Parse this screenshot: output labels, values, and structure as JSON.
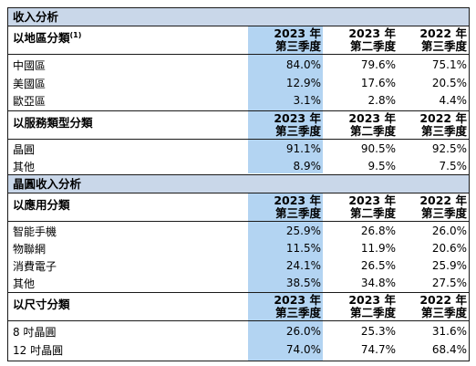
{
  "revenue_title": "收入分析",
  "wafer_title": "晶圓收入分析",
  "headers": {
    "col1": [
      "2023 年",
      "第三季度"
    ],
    "col2": [
      "2023 年",
      "第二季度"
    ],
    "col3": [
      "2022 年",
      "第三季度"
    ]
  },
  "geo": {
    "label": "以地區分類",
    "footnote": "(1)",
    "rows": [
      {
        "label": "中國區",
        "v": [
          "84.0%",
          "79.6%",
          "75.1%"
        ]
      },
      {
        "label": "美國區",
        "v": [
          "12.9%",
          "17.6%",
          "20.5%"
        ]
      },
      {
        "label": "歐亞區",
        "v": [
          "3.1%",
          "2.8%",
          "4.4%"
        ]
      }
    ]
  },
  "service": {
    "label": "以服務類型分類",
    "rows": [
      {
        "label": "晶圓",
        "v": [
          "91.1%",
          "90.5%",
          "92.5%"
        ]
      },
      {
        "label": "其他",
        "v": [
          "8.9%",
          "9.5%",
          "7.5%"
        ]
      }
    ]
  },
  "application": {
    "label": "以應用分類",
    "rows": [
      {
        "label": "智能手機",
        "v": [
          "25.9%",
          "26.8%",
          "26.0%"
        ]
      },
      {
        "label": "物聯網",
        "v": [
          "11.5%",
          "11.9%",
          "20.6%"
        ]
      },
      {
        "label": "消費電子",
        "v": [
          "24.1%",
          "26.5%",
          "25.9%"
        ]
      },
      {
        "label": "其他",
        "v": [
          "38.5%",
          "34.8%",
          "27.5%"
        ]
      }
    ]
  },
  "size": {
    "label": "以尺寸分類",
    "rows": [
      {
        "label": "8 吋晶圓",
        "v": [
          "26.0%",
          "25.3%",
          "31.6%"
        ]
      },
      {
        "label": "12 吋晶圓",
        "v": [
          "74.0%",
          "74.7%",
          "68.4%"
        ]
      }
    ]
  },
  "colors": {
    "band": "#c9d7e9",
    "highlight": "#b3d4f2"
  }
}
